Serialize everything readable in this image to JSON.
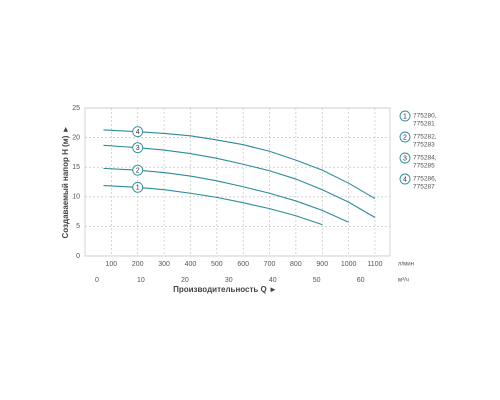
{
  "chart_data": {
    "type": "line",
    "ylabel": "Создаваемый напор H (м) ►",
    "xlabel": "Производительность Q ►",
    "x_unit": "л/мин",
    "x2_unit": "м³/ч",
    "xlim": [
      0,
      1157
    ],
    "xticks": [
      100,
      200,
      300,
      400,
      500,
      600,
      700,
      800,
      900,
      1000,
      1100
    ],
    "x2lim": [
      0,
      69.42
    ],
    "x2ticks": [
      0,
      10,
      20,
      30,
      40,
      50,
      60
    ],
    "ylim": [
      0,
      25
    ],
    "yticks": [
      0,
      5,
      10,
      15,
      20,
      25
    ],
    "grid": true,
    "series": [
      {
        "label": "1",
        "name_lines": [
          "775280,",
          "775281"
        ],
        "color": "#2b8c9c",
        "x": [
          70,
          200,
          300,
          400,
          500,
          600,
          700,
          800,
          900
        ],
        "values": [
          11.9,
          11.6,
          11.2,
          10.6,
          9.9,
          9.0,
          8.0,
          6.8,
          5.3
        ]
      },
      {
        "label": "2",
        "name_lines": [
          "775282,",
          "775283"
        ],
        "color": "#2b8c9c",
        "x": [
          70,
          200,
          300,
          400,
          500,
          600,
          700,
          800,
          900,
          1000
        ],
        "values": [
          14.8,
          14.5,
          14.1,
          13.5,
          12.7,
          11.7,
          10.6,
          9.3,
          7.7,
          5.7
        ]
      },
      {
        "label": "3",
        "name_lines": [
          "775284,",
          "775285"
        ],
        "color": "#2b8c9c",
        "x": [
          70,
          200,
          300,
          400,
          500,
          600,
          700,
          800,
          900,
          1000,
          1100
        ],
        "values": [
          18.7,
          18.3,
          17.9,
          17.3,
          16.5,
          15.5,
          14.4,
          13.0,
          11.2,
          9.1,
          6.5
        ]
      },
      {
        "label": "4",
        "name_lines": [
          "775286,",
          "775287"
        ],
        "color": "#2b8c9c",
        "x": [
          70,
          200,
          300,
          400,
          500,
          600,
          700,
          800,
          900,
          1000,
          1100
        ],
        "values": [
          21.3,
          21.0,
          20.7,
          20.3,
          19.6,
          18.8,
          17.7,
          16.2,
          14.5,
          12.3,
          9.7
        ]
      }
    ]
  }
}
